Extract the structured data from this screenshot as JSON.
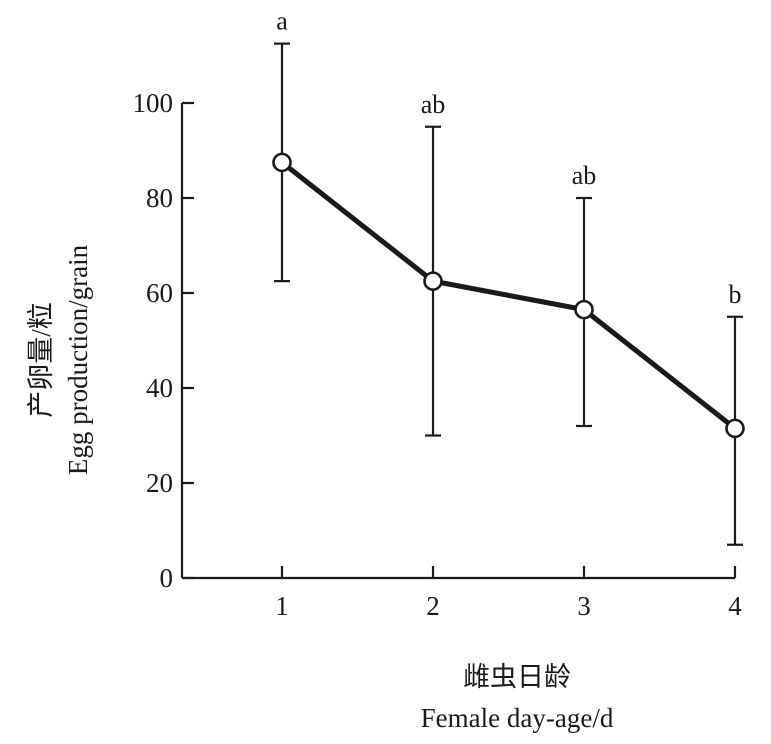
{
  "chart_data": {
    "type": "line",
    "xlabel_cn": "雌虫日龄",
    "xlabel": "Female day-age/d",
    "ylabel_cn": "产卵量/粒",
    "ylabel": "Egg production/grain",
    "x": [
      1,
      2,
      3,
      4
    ],
    "categories": [
      "1",
      "2",
      "3",
      "4"
    ],
    "ylim": [
      0,
      100
    ],
    "yticks": [
      0,
      20,
      40,
      60,
      80,
      100
    ],
    "series": [
      {
        "values": [
          87.5,
          62.5,
          56.5,
          31.5
        ],
        "error_upper": [
          112.5,
          95,
          80,
          55
        ],
        "error_lower": [
          62.5,
          30,
          32,
          7
        ],
        "significance": [
          "a",
          "ab",
          "ab",
          "b"
        ]
      }
    ],
    "grid": false,
    "colors": {
      "line": "#1a1a1a",
      "marker_fill": "#ffffff"
    }
  }
}
